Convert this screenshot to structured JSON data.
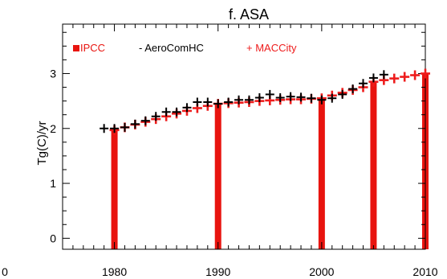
{
  "chart_data": {
    "type": "bar",
    "title": "f. ASA",
    "xlabel": "",
    "ylabel": "Tg(C)/yr",
    "xlim": [
      1975,
      2010
    ],
    "ylim": [
      -0.2,
      3.9
    ],
    "x_ticks": [
      1980,
      1990,
      2000,
      2010
    ],
    "y_ticks": [
      0,
      1,
      2,
      3
    ],
    "edge_tick_labels": {
      "left_x": "0"
    },
    "grid": false,
    "legend_position": "top-left",
    "colors": {
      "ipcc": "#e8140f",
      "aerocom": "#000000",
      "maccity": "#ee1c1c",
      "axis": "#000000"
    },
    "series": [
      {
        "name": "IPCC",
        "marker": "bar",
        "legend_label": "IPCC",
        "x": [
          1980,
          1990,
          2000,
          2005,
          2010
        ],
        "values": [
          1.97,
          2.45,
          2.55,
          2.85,
          3.0
        ]
      },
      {
        "name": "AeroComHC",
        "marker": "+",
        "legend_label": "- AeroComHC",
        "x": [
          1979,
          1980,
          1981,
          1982,
          1983,
          1984,
          1985,
          1986,
          1987,
          1988,
          1989,
          1990,
          1991,
          1992,
          1993,
          1994,
          1995,
          1996,
          1997,
          1998,
          1999,
          2000,
          2001,
          2002,
          2003,
          2004,
          2005,
          2006
        ],
        "values": [
          2.0,
          2.0,
          2.02,
          2.08,
          2.14,
          2.22,
          2.3,
          2.3,
          2.38,
          2.48,
          2.48,
          2.45,
          2.48,
          2.52,
          2.52,
          2.56,
          2.62,
          2.56,
          2.58,
          2.57,
          2.55,
          2.52,
          2.55,
          2.62,
          2.72,
          2.82,
          2.92,
          2.98
        ]
      },
      {
        "name": "MACCity",
        "marker": "+",
        "legend_label": "+ MACCity",
        "x": [
          1980,
          1981,
          1982,
          1983,
          1984,
          1985,
          1986,
          1987,
          1988,
          1989,
          1990,
          1991,
          1992,
          1993,
          1994,
          1995,
          1996,
          1997,
          1998,
          1999,
          2000,
          2001,
          2002,
          2003,
          2004,
          2005,
          2006,
          2007,
          2008,
          2009,
          2010
        ],
        "values": [
          1.97,
          2.02,
          2.07,
          2.12,
          2.17,
          2.22,
          2.27,
          2.32,
          2.37,
          2.41,
          2.45,
          2.46,
          2.47,
          2.48,
          2.5,
          2.51,
          2.52,
          2.53,
          2.53,
          2.54,
          2.55,
          2.6,
          2.65,
          2.7,
          2.75,
          2.85,
          2.88,
          2.91,
          2.94,
          2.97,
          3.0
        ]
      }
    ]
  }
}
